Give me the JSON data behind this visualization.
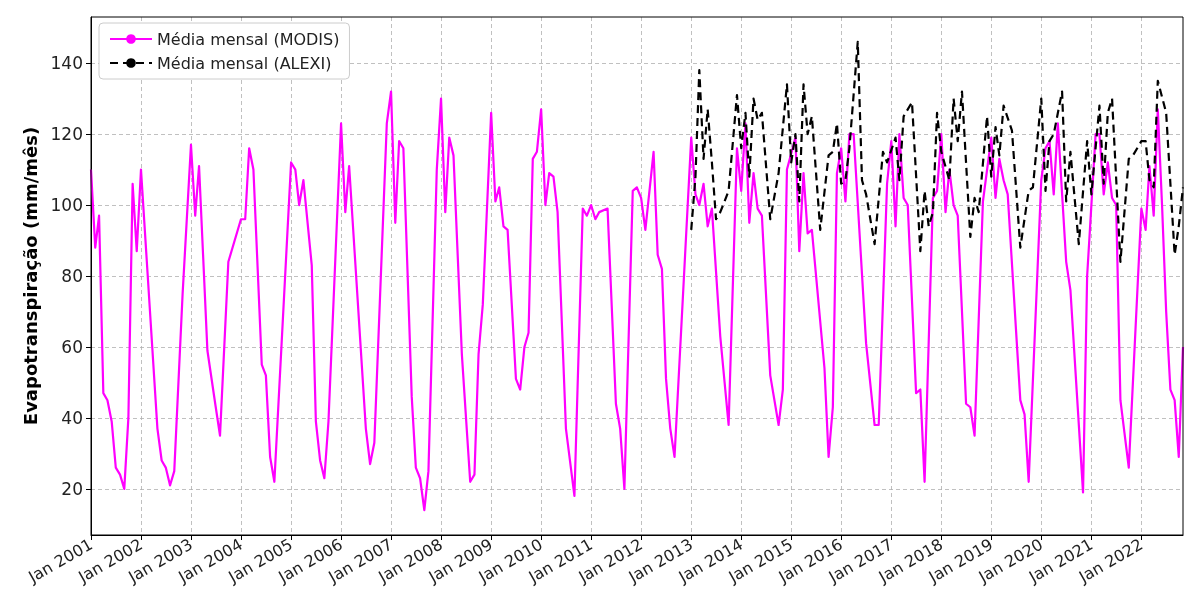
{
  "chart_data": {
    "type": "line",
    "ylabel": "Evapotranspiração (mm/mês)",
    "xlim": [
      "2001-01",
      "2022-11"
    ],
    "ylim": [
      7,
      153
    ],
    "xticks": [
      {
        "value": "2001-01",
        "label": "Jan 2001"
      },
      {
        "value": "2002-01",
        "label": "Jan 2002"
      },
      {
        "value": "2003-01",
        "label": "Jan 2003"
      },
      {
        "value": "2004-01",
        "label": "Jan 2004"
      },
      {
        "value": "2005-01",
        "label": "Jan 2005"
      },
      {
        "value": "2006-01",
        "label": "Jan 2006"
      },
      {
        "value": "2007-01",
        "label": "Jan 2007"
      },
      {
        "value": "2008-01",
        "label": "Jan 2008"
      },
      {
        "value": "2009-01",
        "label": "Jan 2009"
      },
      {
        "value": "2010-01",
        "label": "Jan 2010"
      },
      {
        "value": "2011-01",
        "label": "Jan 2011"
      },
      {
        "value": "2012-01",
        "label": "Jan 2012"
      },
      {
        "value": "2013-01",
        "label": "Jan 2013"
      },
      {
        "value": "2014-01",
        "label": "Jan 2014"
      },
      {
        "value": "2015-01",
        "label": "Jan 2015"
      },
      {
        "value": "2016-01",
        "label": "Jan 2016"
      },
      {
        "value": "2017-01",
        "label": "Jan 2017"
      },
      {
        "value": "2018-01",
        "label": "Jan 2018"
      },
      {
        "value": "2019-01",
        "label": "Jan 2019"
      },
      {
        "value": "2020-01",
        "label": "Jan 2020"
      },
      {
        "value": "2021-01",
        "label": "Jan 2021"
      },
      {
        "value": "2022-01",
        "label": "Jan 2022"
      }
    ],
    "yticks": [
      20,
      40,
      60,
      80,
      100,
      120,
      140
    ],
    "grid": true,
    "legend": "top left",
    "series": [
      {
        "name": "Média mensal (MODIS)",
        "color": "#ff00ff",
        "line_style": "solid",
        "x": [
          "2001-01",
          "2001-02",
          "2001-03",
          "2001-04",
          "2001-05",
          "2001-06",
          "2001-07",
          "2001-08",
          "2001-09",
          "2001-10",
          "2001-11",
          "2001-12",
          "2002-01",
          "2002-05",
          "2002-06",
          "2002-07",
          "2002-08",
          "2002-09",
          "2002-11",
          "2003-01",
          "2003-02",
          "2003-03",
          "2003-05",
          "2003-07",
          "2003-08",
          "2003-10",
          "2004-01",
          "2004-02",
          "2004-03",
          "2004-04",
          "2004-06",
          "2004-07",
          "2004-08",
          "2004-09",
          "2005-01",
          "2005-02",
          "2005-03",
          "2005-04",
          "2005-06",
          "2005-07",
          "2005-08",
          "2005-09",
          "2005-10",
          "2006-01",
          "2006-02",
          "2006-03",
          "2006-07",
          "2006-08",
          "2006-09",
          "2006-12",
          "2007-01",
          "2007-02",
          "2007-03",
          "2007-04",
          "2007-06",
          "2007-07",
          "2007-08",
          "2007-09",
          "2007-10",
          "2007-12",
          "2008-01",
          "2008-02",
          "2008-03",
          "2008-04",
          "2008-06",
          "2008-08",
          "2008-09",
          "2008-10",
          "2008-11",
          "2009-01",
          "2009-02",
          "2009-03",
          "2009-04",
          "2009-05",
          "2009-07",
          "2009-08",
          "2009-09",
          "2009-10",
          "2009-11",
          "2009-12",
          "2010-01",
          "2010-02",
          "2010-03",
          "2010-04",
          "2010-05",
          "2010-07",
          "2010-09",
          "2010-11",
          "2010-12",
          "2011-01",
          "2011-02",
          "2011-03",
          "2011-05",
          "2011-07",
          "2011-08",
          "2011-09",
          "2011-11",
          "2011-12",
          "2012-01",
          "2012-02",
          "2012-04",
          "2012-05",
          "2012-06",
          "2012-07",
          "2012-08",
          "2012-09",
          "2013-01",
          "2013-02",
          "2013-03",
          "2013-04",
          "2013-05",
          "2013-06",
          "2013-08",
          "2013-10",
          "2013-12",
          "2014-01",
          "2014-02",
          "2014-03",
          "2014-04",
          "2014-05",
          "2014-06",
          "2014-08",
          "2014-10",
          "2014-11",
          "2014-12",
          "2015-02",
          "2015-03",
          "2015-04",
          "2015-05",
          "2015-06",
          "2015-09",
          "2015-10",
          "2015-11",
          "2015-12",
          "2016-01",
          "2016-02",
          "2016-03",
          "2016-04",
          "2016-07",
          "2016-09",
          "2016-10",
          "2016-12",
          "2017-01",
          "2017-02",
          "2017-03",
          "2017-04",
          "2017-05",
          "2017-07",
          "2017-08",
          "2017-09",
          "2017-11",
          "2017-12",
          "2018-01",
          "2018-02",
          "2018-03",
          "2018-04",
          "2018-05",
          "2018-07",
          "2018-08",
          "2018-09",
          "2018-11",
          "2019-01",
          "2019-02",
          "2019-03",
          "2019-04",
          "2019-05",
          "2019-08",
          "2019-09",
          "2019-10",
          "2020-01",
          "2020-02",
          "2020-03",
          "2020-04",
          "2020-05",
          "2020-07",
          "2020-08",
          "2020-11",
          "2020-12",
          "2021-02",
          "2021-03",
          "2021-04",
          "2021-05",
          "2021-06",
          "2021-07",
          "2021-08",
          "2021-10",
          "2022-01",
          "2022-02",
          "2022-03",
          "2022-04",
          "2022-05",
          "2022-06",
          "2022-07",
          "2022-08",
          "2022-09",
          "2022-10",
          "2022-11"
        ],
        "values": [
          110,
          88,
          97,
          47,
          45,
          39,
          26,
          24,
          20,
          40,
          106,
          87,
          110,
          37,
          28,
          26,
          21,
          25,
          75,
          117,
          97,
          111,
          59,
          43,
          35,
          84,
          96,
          96,
          116,
          110,
          55,
          52,
          29,
          22,
          112,
          110,
          100,
          107,
          83,
          39,
          28,
          23,
          39,
          123,
          98,
          111,
          37,
          27,
          33,
          123,
          132,
          95,
          118,
          116,
          46,
          26,
          23,
          14,
          25,
          110,
          130,
          98,
          119,
          114,
          58,
          22,
          24,
          58,
          72,
          126,
          101,
          105,
          94,
          93,
          51,
          48,
          60,
          64,
          113,
          115,
          127,
          100,
          109,
          108,
          98,
          37,
          18,
          99,
          97,
          100,
          96,
          98,
          99,
          44,
          37,
          20,
          104,
          105,
          102,
          93,
          115,
          86,
          82,
          51,
          37,
          29,
          119,
          103,
          100,
          106,
          94,
          99,
          63,
          38,
          116,
          104,
          123,
          95,
          109,
          99,
          97,
          52,
          38,
          48,
          110,
          119,
          87,
          109,
          92,
          93,
          54,
          29,
          43,
          109,
          116,
          101,
          120,
          120,
          61,
          38,
          38,
          106,
          118,
          94,
          120,
          102,
          100,
          47,
          48,
          22,
          102,
          104,
          120,
          98,
          110,
          100,
          97,
          44,
          43,
          35,
          101,
          119,
          102,
          113,
          107,
          103,
          45,
          41,
          22,
          107,
          116,
          118,
          103,
          123,
          84,
          76,
          19,
          80,
          120,
          120,
          103,
          112,
          102,
          100,
          45,
          26,
          99,
          93,
          111,
          97,
          127,
          100,
          70,
          48,
          45,
          29,
          60
        ]
      },
      {
        "name": "Média mensal (ALEXI)",
        "color": "#000000",
        "line_style": "dashed",
        "x": [
          "2013-01",
          "2013-02",
          "2013-03",
          "2013-04",
          "2013-05",
          "2013-06",
          "2013-07",
          "2013-08",
          "2013-09",
          "2013-10",
          "2013-12",
          "2014-01",
          "2014-02",
          "2014-03",
          "2014-04",
          "2014-05",
          "2014-06",
          "2014-08",
          "2014-10",
          "2014-12",
          "2015-01",
          "2015-02",
          "2015-03",
          "2015-04",
          "2015-05",
          "2015-06",
          "2015-08",
          "2015-10",
          "2015-11",
          "2015-12",
          "2016-01",
          "2016-02",
          "2016-03",
          "2016-05",
          "2016-06",
          "2016-07",
          "2016-09",
          "2016-11",
          "2016-12",
          "2017-02",
          "2017-03",
          "2017-04",
          "2017-06",
          "2017-08",
          "2017-09",
          "2017-10",
          "2017-11",
          "2017-12",
          "2018-01",
          "2018-03",
          "2018-04",
          "2018-05",
          "2018-06",
          "2018-08",
          "2018-09",
          "2018-10",
          "2018-12",
          "2019-01",
          "2019-02",
          "2019-03",
          "2019-04",
          "2019-06",
          "2019-08",
          "2019-10",
          "2019-11",
          "2020-01",
          "2020-02",
          "2020-03",
          "2020-04",
          "2020-06",
          "2020-07",
          "2020-08",
          "2020-10",
          "2020-12",
          "2021-01",
          "2021-03",
          "2021-04",
          "2021-05",
          "2021-06",
          "2021-08",
          "2021-10",
          "2021-11",
          "2022-01",
          "2022-02",
          "2022-03",
          "2022-04",
          "2022-05",
          "2022-07",
          "2022-09",
          "2022-10",
          "2022-11"
        ],
        "values": [
          93,
          108,
          138,
          113,
          127,
          112,
          96,
          98,
          101,
          104,
          131,
          116,
          126,
          108,
          130,
          124,
          126,
          96,
          109,
          134,
          112,
          120,
          101,
          134,
          120,
          125,
          93,
          114,
          115,
          123,
          106,
          107,
          116,
          146,
          107,
          103,
          89,
          115,
          112,
          119,
          107,
          125,
          129,
          87,
          104,
          94,
          98,
          126,
          115,
          107,
          130,
          118,
          132,
          91,
          102,
          98,
          125,
          108,
          122,
          114,
          128,
          121,
          88,
          104,
          105,
          130,
          104,
          118,
          120,
          132,
          101,
          115,
          89,
          118,
          103,
          128,
          106,
          126,
          130,
          84,
          113,
          114,
          118,
          118,
          107,
          105,
          135,
          126,
          86,
          94,
          105
        ]
      }
    ]
  }
}
